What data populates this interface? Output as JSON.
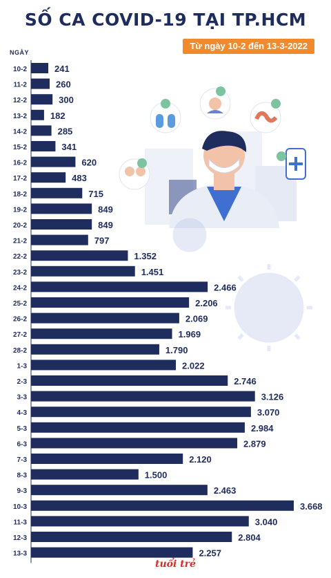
{
  "header": {
    "title": "SỐ CA COVID-19 TẠI TP.HCM",
    "subtitle": "Từ ngày 10-2 đến 13-3-2022"
  },
  "footer": {
    "logo_text": "tuổi trẻ"
  },
  "colors": {
    "bar": "#1e2c5e",
    "accent": "#f08a2c",
    "text": "#1e2c5e"
  },
  "chart_data": {
    "type": "bar",
    "orientation": "horizontal",
    "title": "SỐ CA COVID-19 TẠI TP.HCM",
    "subtitle": "Từ ngày 10-2 đến 13-3-2022",
    "ylabel": "NGÀY",
    "xlabel": "",
    "categories": [
      "10-2",
      "11-2",
      "12-2",
      "13-2",
      "14-2",
      "15-2",
      "16-2",
      "17-2",
      "18-2",
      "19-2",
      "20-2",
      "21-2",
      "22-2",
      "23-2",
      "24-2",
      "25-2",
      "26-2",
      "27-2",
      "28-2",
      "1-3",
      "2-3",
      "3-3",
      "4-3",
      "5-3",
      "6-3",
      "7-3",
      "8-3",
      "9-3",
      "10-3",
      "11-3",
      "12-3",
      "13-3"
    ],
    "values": [
      241,
      260,
      300,
      182,
      285,
      341,
      620,
      483,
      715,
      849,
      849,
      797,
      1352,
      1451,
      2466,
      2206,
      2069,
      1969,
      1790,
      2022,
      2746,
      3126,
      3070,
      2984,
      2879,
      2120,
      1500,
      2463,
      3668,
      3040,
      2804,
      2257
    ],
    "labels": [
      "241",
      "260",
      "300",
      "182",
      "285",
      "341",
      "620",
      "483",
      "715",
      "849",
      "849",
      "797",
      "1.352",
      "1.451",
      "2.466",
      "2.206",
      "2.069",
      "1.969",
      "1.790",
      "2.022",
      "2.746",
      "3.126",
      "3.070",
      "2.984",
      "2.879",
      "2.120",
      "1.500",
      "2.463",
      "3.668",
      "3.040",
      "2.804",
      "2.257"
    ],
    "grid": false,
    "legend": "none"
  }
}
